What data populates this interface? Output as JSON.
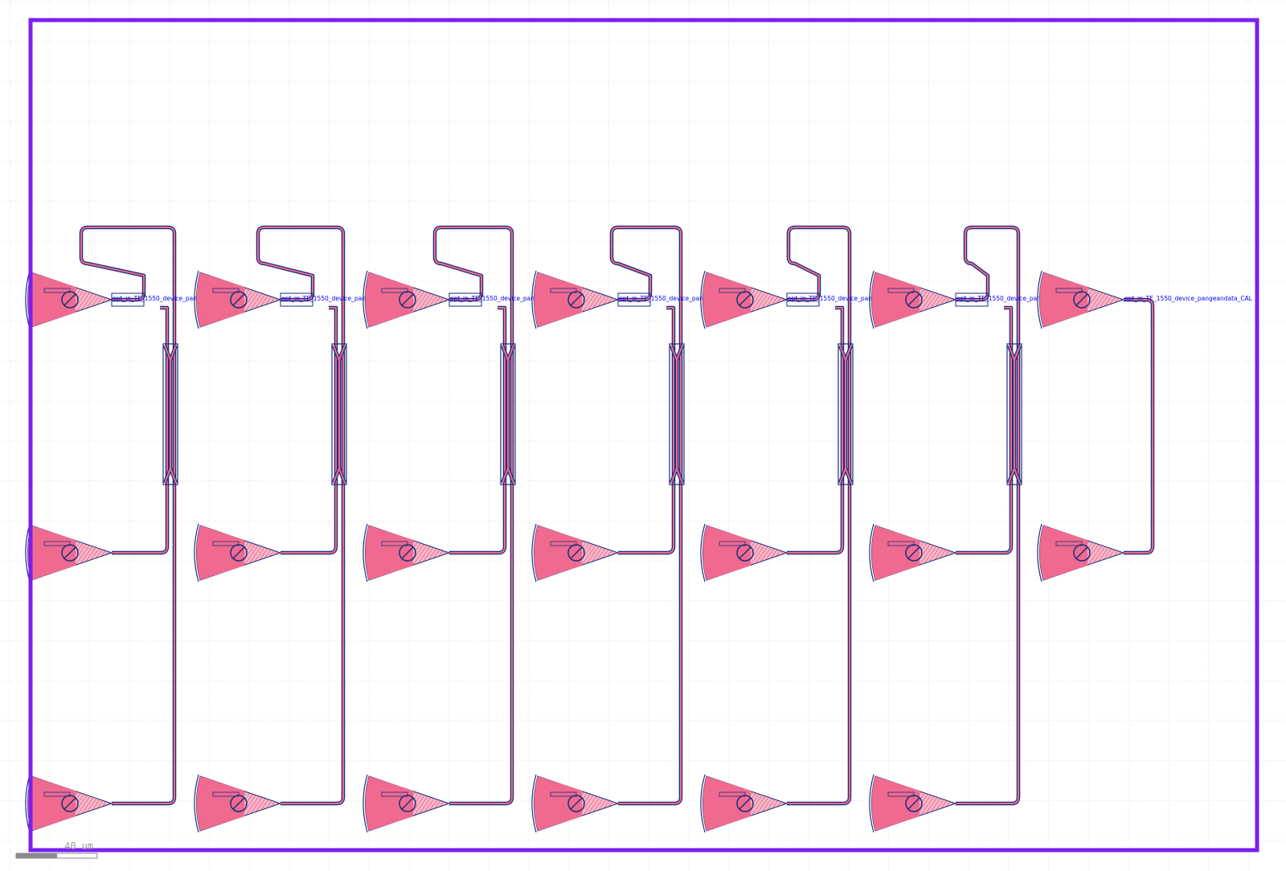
{
  "layout_view": {
    "scale_bar_label": "40 um",
    "colors": {
      "floorplan": "#7a1ff0",
      "waveguide_fill": "#f06a90",
      "waveguide_outline": "#1a2f7a",
      "label": "#0000ff",
      "grid": "#b4b4b4",
      "scale_bar": "#8a8a8a"
    }
  },
  "devices": [
    {
      "id": "MZI1",
      "label": "opt_in_TE_1550_device_pangeandata_MZI1",
      "type": "mzi"
    },
    {
      "id": "MZI2",
      "label": "opt_in_TE_1550_device_pangeandata_MZI2",
      "type": "mzi"
    },
    {
      "id": "MZI3",
      "label": "opt_in_TE_1550_device_pangeandata_MZI3",
      "type": "mzi"
    },
    {
      "id": "MZI4",
      "label": "opt_in_TE_1550_device_pangeandata_MZI4",
      "type": "mzi"
    },
    {
      "id": "MZI5",
      "label": "opt_in_TE_1550_device_pangeandata_MZI5",
      "type": "mzi"
    },
    {
      "id": "MZI6",
      "label": "opt_in_TE_1550_device_pangeandata_MZI6",
      "type": "mzi"
    },
    {
      "id": "CAL",
      "label": "opt_in_TE_1550_device_pangeandata_CAL",
      "type": "loopback"
    }
  ]
}
